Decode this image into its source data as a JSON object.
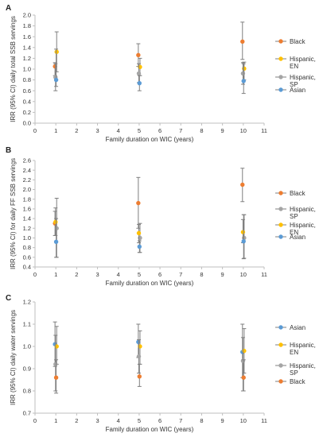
{
  "chart_data": [
    {
      "type": "scatter",
      "panel_label": "A",
      "xlabel": "Family duration on WIC (years)",
      "ylabel": "IRR (95% CI) daily total SSB servings",
      "xlim": [
        0,
        11
      ],
      "ylim": [
        0.0,
        2.0
      ],
      "xticks": [
        0,
        1,
        2,
        3,
        4,
        5,
        6,
        7,
        8,
        9,
        10,
        11
      ],
      "yticks": [
        "0.0",
        "0.2",
        "0.4",
        "0.6",
        "0.8",
        "1.0",
        "1.2",
        "1.4",
        "1.6",
        "1.8",
        "2.0"
      ],
      "legend_position": "right",
      "series": [
        {
          "name": "Black",
          "color": "#ED7D31",
          "points": [
            {
              "x": 1,
              "y": 1.05,
              "lo": 0.88,
              "hi": 1.12
            },
            {
              "x": 5,
              "y": 1.26,
              "lo": 1.05,
              "hi": 1.47
            },
            {
              "x": 10,
              "y": 1.51,
              "lo": 1.18,
              "hi": 1.87
            }
          ]
        },
        {
          "name": "Hispanic, EN",
          "color": "#FFC000",
          "points": [
            {
              "x": 1,
              "y": 1.32,
              "lo": 0.95,
              "hi": 1.69
            },
            {
              "x": 5,
              "y": 1.04,
              "lo": 0.88,
              "hi": 1.2
            },
            {
              "x": 10,
              "y": 1.01,
              "lo": 0.8,
              "hi": 1.13
            }
          ]
        },
        {
          "name": "Hispanic, SP",
          "color": "#A5A5A5",
          "points": [
            {
              "x": 1,
              "y": 0.85,
              "lo": 0.6,
              "hi": 1.1
            },
            {
              "x": 5,
              "y": 0.92,
              "lo": 0.75,
              "hi": 1.1
            },
            {
              "x": 10,
              "y": 0.92,
              "lo": 0.72,
              "hi": 1.12
            }
          ]
        },
        {
          "name": "Asian",
          "color": "#5B9BD5",
          "points": [
            {
              "x": 1,
              "y": 0.8,
              "lo": 0.68,
              "hi": 1.37
            },
            {
              "x": 5,
              "y": 0.74,
              "lo": 0.6,
              "hi": 0.88
            },
            {
              "x": 10,
              "y": 0.78,
              "lo": 0.55,
              "hi": 1.1
            }
          ]
        }
      ]
    },
    {
      "type": "scatter",
      "panel_label": "B",
      "xlabel": "Family duration on WIC (years)",
      "ylabel": "IRR (95% CI) for daily FF SSB servings",
      "xlim": [
        0,
        11
      ],
      "ylim": [
        0.4,
        2.6
      ],
      "xticks": [
        0,
        1,
        2,
        3,
        4,
        5,
        6,
        7,
        8,
        9,
        10,
        11
      ],
      "yticks": [
        "0.4",
        "0.6",
        "0.8",
        "1.0",
        "1.2",
        "1.4",
        "1.6",
        "1.8",
        "2.0",
        "2.2",
        "2.4",
        "2.6"
      ],
      "legend_position": "right",
      "series": [
        {
          "name": "Black",
          "color": "#ED7D31",
          "points": [
            {
              "x": 1,
              "y": 1.3,
              "lo": 1.05,
              "hi": 1.55
            },
            {
              "x": 5,
              "y": 1.72,
              "lo": 1.2,
              "hi": 2.25
            },
            {
              "x": 10,
              "y": 2.1,
              "lo": 1.75,
              "hi": 2.44
            }
          ]
        },
        {
          "name": "Hispanic, SP",
          "color": "#A5A5A5",
          "points": [
            {
              "x": 1,
              "y": 1.2,
              "lo": 0.6,
              "hi": 1.82
            },
            {
              "x": 5,
              "y": 1.0,
              "lo": 0.7,
              "hi": 1.3
            },
            {
              "x": 10,
              "y": 1.0,
              "lo": 0.58,
              "hi": 1.48
            }
          ]
        },
        {
          "name": "Hispanic, EN",
          "color": "#FFC000",
          "points": [
            {
              "x": 1,
              "y": 1.33,
              "lo": 1.05,
              "hi": 1.62
            },
            {
              "x": 5,
              "y": 1.1,
              "lo": 0.9,
              "hi": 1.28
            },
            {
              "x": 10,
              "y": 1.12,
              "lo": 0.9,
              "hi": 1.38
            }
          ]
        },
        {
          "name": "Asian",
          "color": "#5B9BD5",
          "points": [
            {
              "x": 1,
              "y": 0.92,
              "lo": 0.6,
              "hi": 1.4
            },
            {
              "x": 5,
              "y": 0.82,
              "lo": 0.7,
              "hi": 0.94
            },
            {
              "x": 10,
              "y": 0.93,
              "lo": 0.57,
              "hi": 1.48
            }
          ]
        }
      ]
    },
    {
      "type": "scatter",
      "panel_label": "C",
      "xlabel": "Family duration on WIC (years)",
      "ylabel": "IRR (95% CI) daily water servings",
      "xlim": [
        0,
        11
      ],
      "ylim": [
        0.7,
        1.2
      ],
      "xticks": [
        0,
        1,
        2,
        3,
        4,
        5,
        6,
        7,
        8,
        9,
        10,
        11
      ],
      "yticks": [
        "0.7",
        "0.8",
        "0.9",
        "1.0",
        "1.1",
        "1.2"
      ],
      "legend_position": "right",
      "series": [
        {
          "name": "Asian",
          "color": "#5B9BD5",
          "points": [
            {
              "x": 1,
              "y": 1.01,
              "lo": 0.91,
              "hi": 1.11
            },
            {
              "x": 5,
              "y": 1.02,
              "lo": 0.95,
              "hi": 1.1
            },
            {
              "x": 10,
              "y": 0.975,
              "lo": 0.86,
              "hi": 1.1
            }
          ]
        },
        {
          "name": "Hispanic, EN",
          "color": "#FFC000",
          "points": [
            {
              "x": 1,
              "y": 1.0,
              "lo": 0.92,
              "hi": 1.09
            },
            {
              "x": 5,
              "y": 1.0,
              "lo": 0.92,
              "hi": 1.07
            },
            {
              "x": 10,
              "y": 0.98,
              "lo": 0.88,
              "hi": 1.08
            }
          ]
        },
        {
          "name": "Hispanic, SP",
          "color": "#A5A5A5",
          "points": [
            {
              "x": 1,
              "y": 0.92,
              "lo": 0.8,
              "hi": 1.05
            },
            {
              "x": 5,
              "y": 0.955,
              "lo": 0.88,
              "hi": 1.03
            },
            {
              "x": 10,
              "y": 0.935,
              "lo": 0.8,
              "hi": 1.04
            }
          ]
        },
        {
          "name": "Black",
          "color": "#ED7D31",
          "points": [
            {
              "x": 1,
              "y": 0.86,
              "lo": 0.79,
              "hi": 0.94
            },
            {
              "x": 5,
              "y": 0.865,
              "lo": 0.82,
              "hi": 0.92
            },
            {
              "x": 10,
              "y": 0.86,
              "lo": 0.8,
              "hi": 0.94
            }
          ]
        }
      ]
    }
  ]
}
